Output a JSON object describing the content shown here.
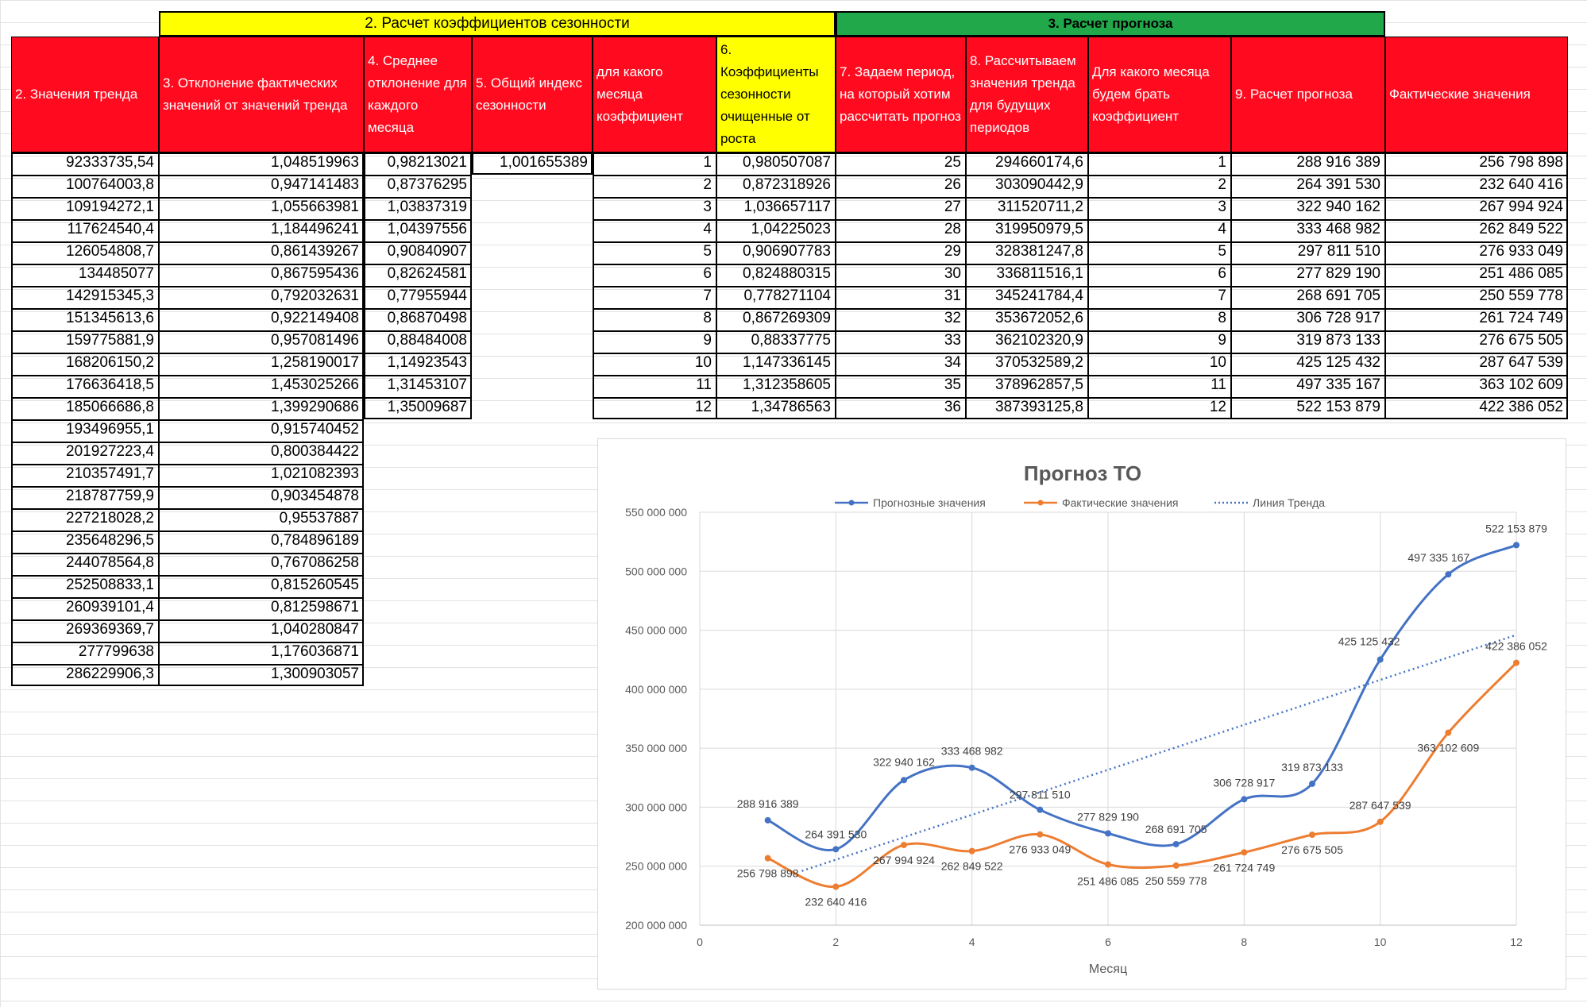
{
  "bands": {
    "section2": "2. Расчет коэффициентов сезонности",
    "section3": "3. Расчет прогноза"
  },
  "headers": [
    "2. Значения тренда",
    "3. Отклонение фактических значений от значений тренда",
    "4. Среднее отклонение для каждого месяца",
    "5. Общий индекс сезонности",
    "для какого месяца коэффициент",
    "6. Коэффициенты сезонности очищенные от роста",
    "7. Задаем период, на который хотим рассчитать прогноз",
    "8. Рассчитываем значения тренда для будущих периодов",
    "Для какого месяца будем брать коэффициент",
    "9. Расчет прогноза",
    "Фактические значения"
  ],
  "trend_values": [
    "92333735,54",
    "100764003,8",
    "109194272,1",
    "117624540,4",
    "126054808,7",
    "134485077",
    "142915345,3",
    "151345613,6",
    "159775881,9",
    "168206150,2",
    "176636418,5",
    "185066686,8",
    "193496955,1",
    "201927223,4",
    "210357491,7",
    "218787759,9",
    "227218028,2",
    "235648296,5",
    "244078564,8",
    "252508833,1",
    "260939101,4",
    "269369369,7",
    "277799638",
    "286229906,3"
  ],
  "deviations": [
    "1,048519963",
    "0,947141483",
    "1,055663981",
    "1,184496241",
    "0,861439267",
    "0,867595436",
    "0,792032631",
    "0,922149408",
    "0,957081496",
    "1,258190017",
    "1,453025266",
    "1,399290686",
    "0,915740452",
    "0,800384422",
    "1,021082393",
    "0,903454878",
    "0,95537887",
    "0,784896189",
    "0,767086258",
    "0,815260545",
    "0,812598671",
    "1,040280847",
    "1,176036871",
    "1,300903057"
  ],
  "avg_deviation": [
    "0,98213021",
    "0,87376295",
    "1,03837319",
    "1,04397556",
    "0,90840907",
    "0,82624581",
    "0,77955944",
    "0,86870498",
    "0,88484008",
    "1,14923543",
    "1,31453107",
    "1,35009687"
  ],
  "general_index": "1,001655389",
  "month_for_coef": [
    "1",
    "2",
    "3",
    "4",
    "5",
    "6",
    "7",
    "8",
    "9",
    "10",
    "11",
    "12"
  ],
  "coef_clean": [
    "0,980507087",
    "0,872318926",
    "1,036657117",
    "1,04225023",
    "0,906907783",
    "0,824880315",
    "0,778271104",
    "0,867269309",
    "0,88337775",
    "1,147336145",
    "1,312358605",
    "1,34786563"
  ],
  "period": [
    "25",
    "26",
    "27",
    "28",
    "29",
    "30",
    "31",
    "32",
    "33",
    "34",
    "35",
    "36"
  ],
  "trend_future": [
    "294660174,6",
    "303090442,9",
    "311520711,2",
    "319950979,5",
    "328381247,8",
    "336811516,1",
    "345241784,4",
    "353672052,6",
    "362102320,9",
    "370532589,2",
    "378962857,5",
    "387393125,8"
  ],
  "month_use": [
    "1",
    "2",
    "3",
    "4",
    "5",
    "6",
    "7",
    "8",
    "9",
    "10",
    "11",
    "12"
  ],
  "forecast": [
    "288 916 389",
    "264 391 530",
    "322 940 162",
    "333 468 982",
    "297 811 510",
    "277 829 190",
    "268 691 705",
    "306 728 917",
    "319 873 133",
    "425 125 432",
    "497 335 167",
    "522 153 879"
  ],
  "actual": [
    "256 798 898",
    "232 640 416",
    "267 994 924",
    "262 849 522",
    "276 933 049",
    "251 486 085",
    "250 559 778",
    "261 724 749",
    "276 675 505",
    "287 647 539",
    "363 102 609",
    "422 386 052"
  ],
  "chart_data": {
    "type": "line",
    "title": "Прогноз ТО",
    "xlabel": "Месяц",
    "ylabel": "",
    "xlim": [
      0,
      12
    ],
    "ylim": [
      200000000,
      550000000
    ],
    "x_ticks": [
      "0",
      "2",
      "4",
      "6",
      "8",
      "10",
      "12"
    ],
    "y_ticks": [
      "200 000 000",
      "250 000 000",
      "300 000 000",
      "350 000 000",
      "400 000 000",
      "450 000 000",
      "500 000 000",
      "550 000 000"
    ],
    "legend_position": "top",
    "grid": true,
    "x": [
      1,
      2,
      3,
      4,
      5,
      6,
      7,
      8,
      9,
      10,
      11,
      12
    ],
    "series": [
      {
        "name": "Прогнозные значения",
        "color": "#4472c4",
        "values": [
          288916389,
          264391530,
          322940162,
          333468982,
          297811510,
          277829190,
          268691705,
          306728917,
          319873133,
          425125432,
          497335167,
          522153879
        ],
        "labels": [
          "288 916 389",
          "264 391 530",
          "322 940 162",
          "333 468 982",
          "297 811 510",
          "277 829 190",
          "268 691 705",
          "306 728 917",
          "319 873 133",
          "425 125 432",
          "497 335 167",
          "522 153 879"
        ]
      },
      {
        "name": "Фактические значения",
        "color": "#ed7d31",
        "values": [
          256798898,
          232640416,
          267994924,
          262849522,
          276933049,
          251486085,
          250559778,
          261724749,
          276675505,
          287647539,
          363102609,
          422386052
        ],
        "labels": [
          "256 798 898",
          "232 640 416",
          "267 994 924",
          "262 849 522",
          "276 933 049",
          "251 486 085",
          "250 559 778",
          "261 724 749",
          "276 675 505",
          "287 647 539",
          "363 102 609",
          "422 386 052"
        ]
      }
    ],
    "trendline": {
      "name": "Линия Тренда",
      "color": "#4472c4",
      "from": [
        1.5,
        246000000
      ],
      "to": [
        12,
        446000000
      ]
    }
  }
}
